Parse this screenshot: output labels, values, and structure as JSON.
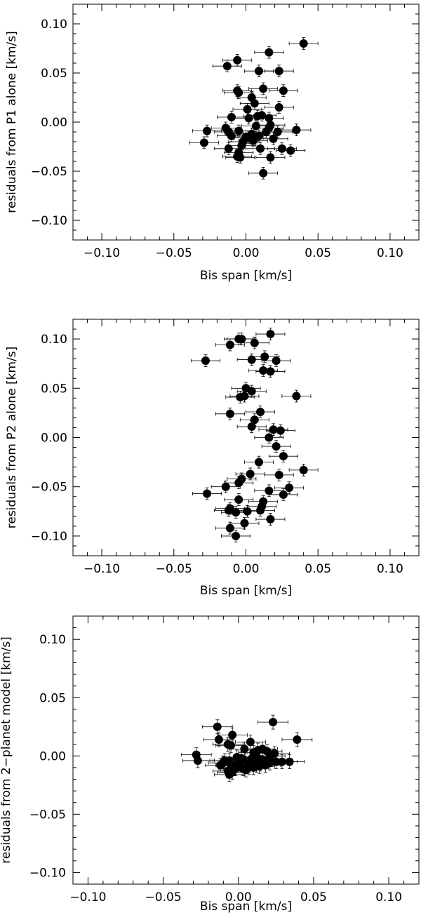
{
  "chart_data": [
    {
      "type": "scatter",
      "title": "",
      "xlabel": "Bis span [km/s]",
      "ylabel": "residuals from P1 alone [km/s]",
      "xlim": [
        -0.12,
        0.12
      ],
      "ylim": [
        -0.12,
        0.12
      ],
      "xticks": [
        -0.1,
        -0.05,
        0.0,
        0.05,
        0.1
      ],
      "yticks": [
        -0.1,
        -0.05,
        0.0,
        0.05,
        0.1
      ],
      "xtick_labels": [
        "−0.10",
        "−0.05",
        "0.00",
        "0.05",
        "0.10"
      ],
      "ytick_labels": [
        "−0.10",
        "−0.05",
        "0.00",
        "0.05",
        "0.10"
      ],
      "x_error": 0.01,
      "y_error": 0.006,
      "x": [
        0.04,
        0.016,
        -0.006,
        -0.013,
        0.023,
        0.009,
        0.012,
        -0.006,
        -0.005,
        0.026,
        0.001,
        0.006,
        0.004,
        0.002,
        0.023,
        0.011,
        0.008,
        0.016,
        -0.01,
        0.017,
        0.016,
        -0.027,
        -0.014,
        0.022,
        0.035,
        0.004,
        0.002,
        -0.012,
        0.019,
        -0.01,
        0.009,
        0.014,
        0.0,
        -0.005,
        0.005,
        -0.029,
        -0.003,
        0.025,
        -0.012,
        0.01,
        0.031,
        -0.005,
        0.017,
        -0.006,
        -0.004,
        0.012,
        0.007,
        -0.002
      ],
      "y": [
        0.08,
        0.071,
        0.063,
        0.057,
        0.052,
        0.052,
        0.034,
        0.032,
        0.03,
        0.032,
        0.013,
        0.019,
        0.025,
        0.004,
        0.015,
        0.007,
        0.006,
        0.004,
        0.005,
        -0.003,
        -0.006,
        -0.009,
        -0.006,
        -0.01,
        -0.008,
        -0.012,
        -0.016,
        -0.01,
        -0.017,
        -0.014,
        -0.014,
        -0.01,
        -0.015,
        -0.009,
        -0.019,
        -0.021,
        -0.024,
        -0.027,
        -0.027,
        -0.027,
        -0.029,
        -0.031,
        -0.036,
        -0.035,
        -0.036,
        -0.052,
        -0.004,
        -0.02
      ]
    },
    {
      "type": "scatter",
      "title": "",
      "xlabel": "Bis span [km/s]",
      "ylabel": "residuals from P2 alone [km/s]",
      "xlim": [
        -0.12,
        0.12
      ],
      "ylim": [
        -0.12,
        0.12
      ],
      "xticks": [
        -0.1,
        -0.05,
        0.0,
        0.05,
        0.1
      ],
      "yticks": [
        -0.1,
        -0.05,
        0.0,
        0.05,
        0.1
      ],
      "xtick_labels": [
        "−0.10",
        "−0.05",
        "0.00",
        "0.05",
        "0.10"
      ],
      "ytick_labels": [
        "−0.10",
        "−0.05",
        "0.00",
        "0.05",
        "0.10"
      ],
      "x_error": 0.01,
      "y_error": 0.006,
      "x": [
        0.017,
        -0.005,
        -0.003,
        -0.011,
        0.006,
        0.013,
        0.004,
        0.021,
        -0.028,
        0.012,
        0.017,
        0.0,
        0.004,
        -0.001,
        -0.004,
        0.035,
        0.01,
        -0.011,
        0.006,
        0.004,
        0.019,
        0.024,
        0.016,
        0.021,
        0.026,
        0.009,
        0.04,
        0.023,
        0.003,
        -0.003,
        0.03,
        -0.014,
        0.016,
        -0.027,
        0.026,
        -0.005,
        0.012,
        -0.005,
        -0.011,
        0.011,
        0.001,
        -0.007,
        0.01,
        -0.012,
        0.017,
        -0.001,
        -0.011,
        -0.007
      ],
      "y": [
        0.105,
        0.1,
        0.1,
        0.094,
        0.096,
        0.082,
        0.079,
        0.078,
        0.078,
        0.068,
        0.067,
        0.05,
        0.047,
        0.042,
        0.041,
        0.042,
        0.026,
        0.024,
        0.018,
        0.011,
        0.008,
        0.007,
        0.0,
        -0.009,
        -0.019,
        -0.025,
        -0.033,
        -0.038,
        -0.037,
        -0.042,
        -0.051,
        -0.05,
        -0.054,
        -0.057,
        -0.058,
        -0.063,
        -0.065,
        -0.046,
        -0.072,
        -0.07,
        -0.075,
        -0.076,
        -0.074,
        -0.074,
        -0.083,
        -0.087,
        -0.092,
        -0.1
      ]
    },
    {
      "type": "scatter",
      "title": "",
      "xlabel": "Bis span [km/s]",
      "ylabel": "residuals from 2−planet model [km/s]",
      "xlim": [
        -0.11,
        0.12
      ],
      "ylim": [
        -0.11,
        0.12
      ],
      "xticks": [
        -0.1,
        -0.05,
        0.0,
        0.05,
        0.1
      ],
      "yticks": [
        -0.1,
        -0.05,
        0.0,
        0.05,
        0.1
      ],
      "xtick_labels": [
        "−0.10",
        "−0.05",
        "0.00",
        "0.05",
        "0.10"
      ],
      "ytick_labels": [
        "−0.10",
        "−0.05",
        "0.00",
        "0.05",
        "0.10"
      ],
      "x_error": 0.01,
      "y_error": 0.006,
      "x": [
        0.023,
        -0.014,
        -0.004,
        0.039,
        -0.013,
        0.008,
        -0.007,
        -0.005,
        0.004,
        0.016,
        -0.028,
        -0.027,
        -0.009,
        -0.001,
        0.01,
        0.013,
        0.019,
        0.024,
        0.002,
        -0.006,
        0.0,
        0.005,
        0.009,
        0.013,
        0.016,
        0.021,
        0.025,
        0.029,
        0.034,
        -0.01,
        -0.005,
        0.001,
        0.007,
        0.012,
        0.018,
        -0.003,
        -0.007,
        -0.004,
        0.01,
        0.003,
        0.007,
        0.014,
        -0.002,
        0.005,
        0.021,
        -0.006,
        0.011,
        -0.012
      ],
      "y": [
        0.029,
        0.025,
        0.018,
        0.014,
        0.014,
        0.012,
        0.01,
        0.009,
        0.006,
        0.006,
        0.001,
        -0.004,
        -0.004,
        -0.001,
        0.003,
        0.005,
        0.004,
        0.002,
        -0.002,
        -0.004,
        -0.005,
        -0.004,
        -0.002,
        -0.002,
        -0.003,
        0.0,
        -0.005,
        -0.005,
        -0.005,
        -0.006,
        -0.008,
        -0.007,
        -0.008,
        -0.008,
        -0.008,
        -0.011,
        -0.013,
        -0.014,
        -0.01,
        -0.011,
        -0.01,
        -0.009,
        -0.011,
        -0.012,
        -0.006,
        -0.016,
        -0.007,
        -0.008
      ]
    }
  ]
}
